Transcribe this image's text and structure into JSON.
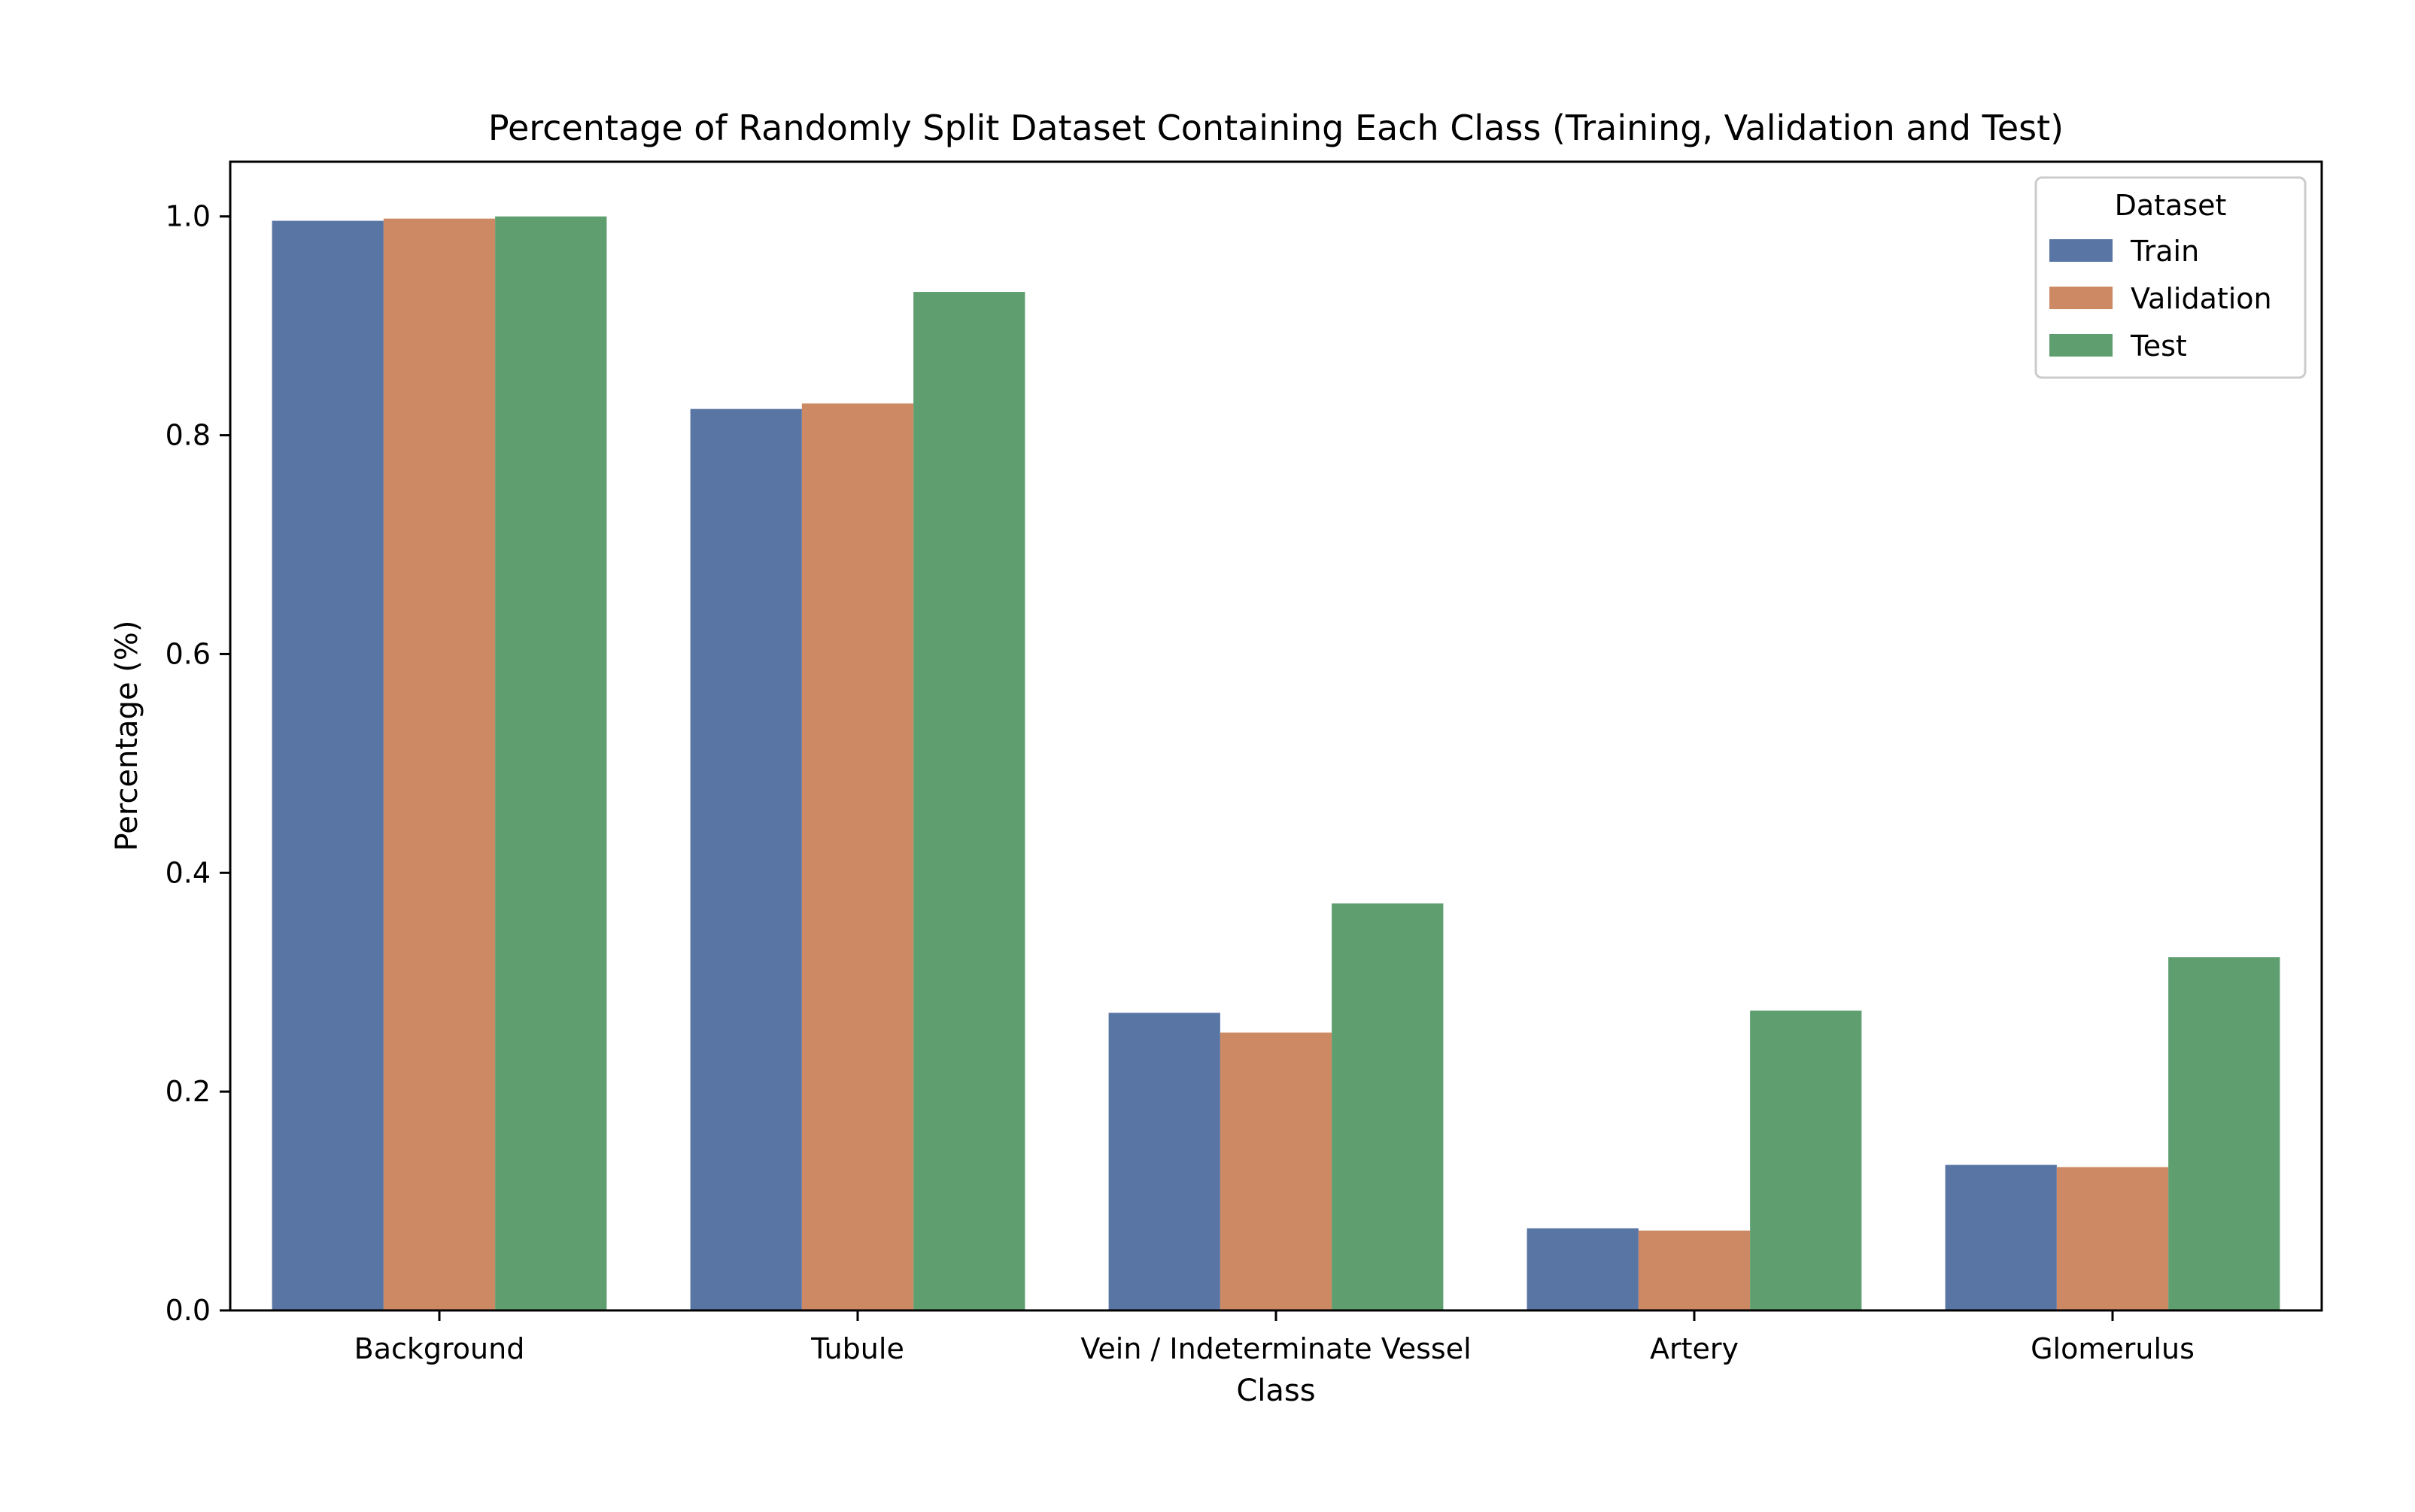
{
  "chart_data": {
    "type": "bar",
    "title": "Percentage of Randomly Split Dataset Containing Each Class (Training, Validation and Test)",
    "xlabel": "Class",
    "ylabel": "Percentage (%)",
    "categories": [
      "Background",
      "Tubule",
      "Vein / Indeterminate Vessel",
      "Artery",
      "Glomerulus"
    ],
    "series": [
      {
        "name": "Train",
        "color": "#5975a4",
        "values": [
          0.996,
          0.824,
          0.272,
          0.075,
          0.133
        ]
      },
      {
        "name": "Validation",
        "color": "#cc8963",
        "values": [
          0.998,
          0.829,
          0.254,
          0.073,
          0.131
        ]
      },
      {
        "name": "Test",
        "color": "#5f9e6e",
        "values": [
          1.0,
          0.931,
          0.372,
          0.274,
          0.323
        ]
      }
    ],
    "ylim": [
      0,
      1.05
    ],
    "yticks": [
      0.0,
      0.2,
      0.4,
      0.6,
      0.8,
      1.0
    ],
    "ytick_labels": [
      "0.0",
      "0.2",
      "0.4",
      "0.6",
      "0.8",
      "1.0"
    ],
    "grid": false,
    "legend": {
      "title": "Dataset",
      "placement": "top-right"
    }
  }
}
